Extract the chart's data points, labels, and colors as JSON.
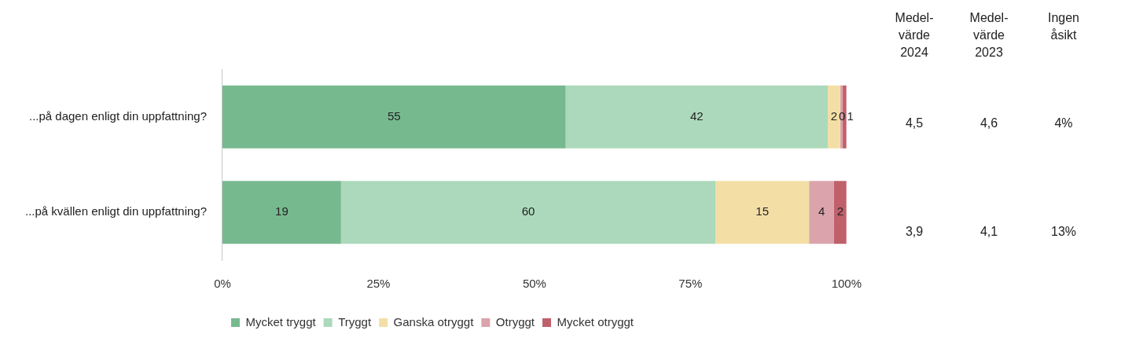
{
  "chart_data": {
    "type": "bar",
    "orientation": "horizontal",
    "stacked": true,
    "categories": [
      "...på dagen enligt din uppfattning?",
      "...på kvällen enligt din uppfattning?"
    ],
    "series": [
      {
        "name": "Mycket tryggt",
        "color": "#77b98f",
        "values": [
          55,
          19
        ],
        "value_labels": [
          "55",
          "19"
        ]
      },
      {
        "name": "Tryggt",
        "color": "#acd9bb",
        "values": [
          42,
          60
        ],
        "value_labels": [
          "42",
          "60"
        ]
      },
      {
        "name": "Ganska otryggt",
        "color": "#f3dfa6",
        "values": [
          2,
          15
        ],
        "value_labels": [
          "2",
          "15"
        ]
      },
      {
        "name": "Otryggt",
        "color": "#dba3ac",
        "values": [
          0.4,
          4
        ],
        "value_labels": [
          "0",
          "4"
        ]
      },
      {
        "name": "Mycket otryggt",
        "color": "#c0606b",
        "values": [
          0.6,
          2
        ],
        "value_labels": [
          "1",
          "2"
        ]
      }
    ],
    "xlim": [
      0,
      100
    ],
    "xticks": [
      {
        "value": 0,
        "label": "0%"
      },
      {
        "value": 25,
        "label": "25%"
      },
      {
        "value": 50,
        "label": "50%"
      },
      {
        "value": 75,
        "label": "75%"
      },
      {
        "value": 100,
        "label": "100%"
      }
    ],
    "grid": false,
    "legend": "bottom",
    "annotations": [
      "Medel-\nvärde\n2024",
      "Medel-\nvärde\n2023",
      "Ingen\nåsikt",
      "4,5",
      "4,6",
      "4%",
      "3,9",
      "4,1",
      "13%"
    ]
  }
}
